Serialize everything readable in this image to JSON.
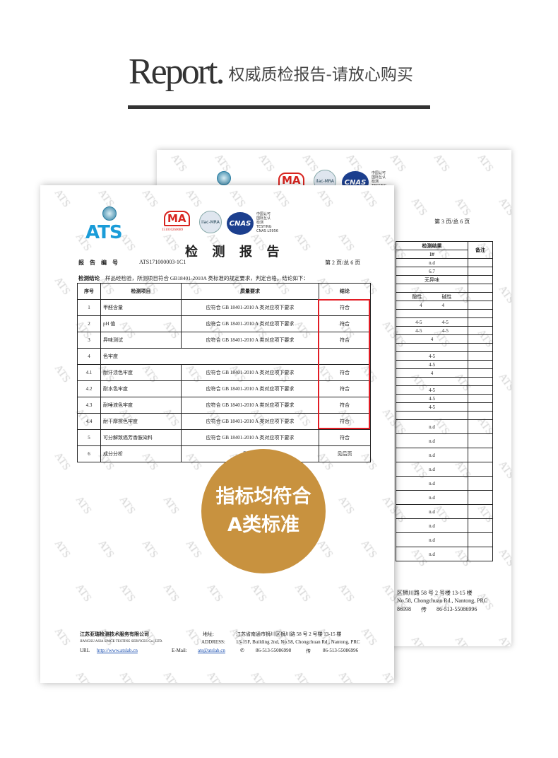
{
  "header": {
    "report_word": "Report.",
    "subtitle": "权威质检报告-请放心购买"
  },
  "watermark": "ATS",
  "logos": {
    "ats": "ATS",
    "cma": "MA",
    "cma_number": "151010260089",
    "ilac": "ilac-MRA",
    "cnas": "CNAS",
    "cnas_text": "中国认可\n国际互认\n检测\nTESTING\nCNAS L5956"
  },
  "front": {
    "title": "检 测 报 告",
    "report_no_label": "报 告 编 号",
    "report_no": "ATS171000003-1C1",
    "page": "第 2 页/总 6 页",
    "conclusion_label": "检测结论",
    "conclusion": "样品经检验，所测项目符合 GB18401-2010A 类标准的规定要求，判定合格。结论如下：",
    "columns": [
      "序号",
      "检测项目",
      "质量要求",
      "结论"
    ],
    "rows": [
      [
        "1",
        "甲醛含量",
        "应符合 GB 18401-2010 A 类对应项下要求",
        "符合"
      ],
      [
        "2",
        "pH 值",
        "应符合 GB 18401-2010 A 类对应项下要求",
        "符合"
      ],
      [
        "3",
        "异味测试",
        "应符合 GB 18401-2010 A 类对应项下要求",
        "符合"
      ],
      [
        "4",
        "色牢度",
        "",
        ""
      ],
      [
        "4.1",
        "耐汗渍色牢度",
        "应符合 GB 18401-2010 A 类对应项下要求",
        "符合"
      ],
      [
        "4.2",
        "耐水色牢度",
        "应符合 GB 18401-2010 A 类对应项下要求",
        "符合"
      ],
      [
        "4.3",
        "耐唾液色牢度",
        "应符合 GB 18401-2010 A 类对应项下要求",
        "符合"
      ],
      [
        "4.4",
        "耐干摩擦色牢度",
        "应符合 GB 18401-2010 A 类对应项下要求",
        "符合"
      ],
      [
        "5",
        "可分解致癌芳香胺染料",
        "应符合 GB 18401-2010 A 类对应项下要求",
        "符合"
      ],
      [
        "6",
        "成分分析",
        "见后页",
        "见后页"
      ]
    ],
    "footer": {
      "company_cn": "江苏亚瑞检测技术服务有限公司",
      "company_en": "JIANGSU ASIA SPACE TESTING SERVICES Co., LTD.",
      "url_label": "URL",
      "url": "http://www.atslab.cn",
      "email_label": "E-Mail:",
      "email": "ats@atslab.cn",
      "addr_label": "地址:",
      "addr_cn": "江苏省南通市狮川区狮川路 58 号 2 号楼 13-15 楼",
      "address_label": "ADDRESS:",
      "addr_en": "13-15F, Building 2nd, No.58, Chongchuan Rd., Nantong, PRC",
      "tel": "86-513-55086998",
      "fax_label": "传",
      "fax": "86-513-55086996"
    }
  },
  "back": {
    "page": "第 3 页/总 6 页",
    "result_header": "检测结果",
    "sample": "1#",
    "remark_header": "备注",
    "rows": [
      [
        "n.d"
      ],
      [
        "6.7"
      ],
      [
        "无异味"
      ],
      [
        ""
      ],
      [
        "酸性",
        "碱性"
      ],
      [
        "4",
        "4"
      ],
      [
        ""
      ],
      [
        "4-5",
        "4-5"
      ],
      [
        "4-5",
        "4-5"
      ],
      [
        "4"
      ],
      [
        ""
      ],
      [
        "4-5"
      ],
      [
        "4-5"
      ],
      [
        "4"
      ],
      [
        ""
      ],
      [
        "4-5"
      ],
      [
        "4-5"
      ],
      [
        "4-5"
      ],
      [
        ""
      ],
      [
        "n.d"
      ],
      [
        "n.d"
      ],
      [
        "n.d"
      ],
      [
        "n.d"
      ],
      [
        "n.d"
      ],
      [
        "n.d"
      ],
      [
        "n.d"
      ],
      [
        "n.d"
      ],
      [
        "n.d"
      ],
      [
        "n.d"
      ]
    ],
    "footer_addr": "区狮川路 58 号 2 号楼 13-15 楼",
    "footer_en": "No.58, Chongchuan Rd., Nantong, PRC",
    "footer_tel": "86998",
    "fax_label": "传",
    "footer_fax": "86-513-55086996"
  },
  "badge": {
    "line1": "指标均符合",
    "line2": "A类标准"
  },
  "colors": {
    "badge": "#c8923f",
    "highlight": "#e21c24",
    "header_bar": "#333333"
  }
}
